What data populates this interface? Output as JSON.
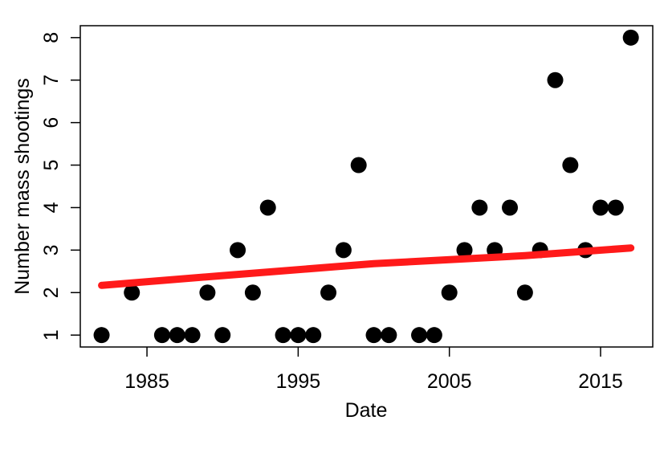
{
  "chart_data": {
    "type": "scatter",
    "xlabel": "Date",
    "ylabel": "Number mass shootings",
    "xlim": [
      1980.59,
      2018.45
    ],
    "ylim": [
      0.72,
      8.28
    ],
    "xticks": [
      1985,
      1995,
      2005,
      2015
    ],
    "yticks": [
      1,
      2,
      3,
      4,
      5,
      6,
      7,
      8
    ],
    "grid": false,
    "series": [
      {
        "mode": "markers",
        "color": "#000000",
        "x": [
          1982,
          1984,
          1986,
          1987,
          1988,
          1989,
          1990,
          1991,
          1992,
          1993,
          1994,
          1995,
          1996,
          1997,
          1998,
          1999,
          2000,
          2001,
          2003,
          2004,
          2005,
          2006,
          2007,
          2008,
          2009,
          2010,
          2011,
          2012,
          2013,
          2014,
          2015,
          2016,
          2017
        ],
        "values": [
          1,
          2,
          1,
          1,
          1,
          2,
          1,
          3,
          2,
          4,
          1,
          1,
          1,
          2,
          3,
          5,
          1,
          1,
          1,
          1,
          2,
          3,
          4,
          3,
          4,
          2,
          3,
          7,
          5,
          3,
          4,
          4,
          8
        ]
      },
      {
        "mode": "lines",
        "color": "#ff1a1a",
        "x": [
          1982,
          1990,
          2000,
          2010,
          2017
        ],
        "values": [
          2.17,
          2.4,
          2.68,
          2.87,
          3.05
        ]
      }
    ]
  }
}
